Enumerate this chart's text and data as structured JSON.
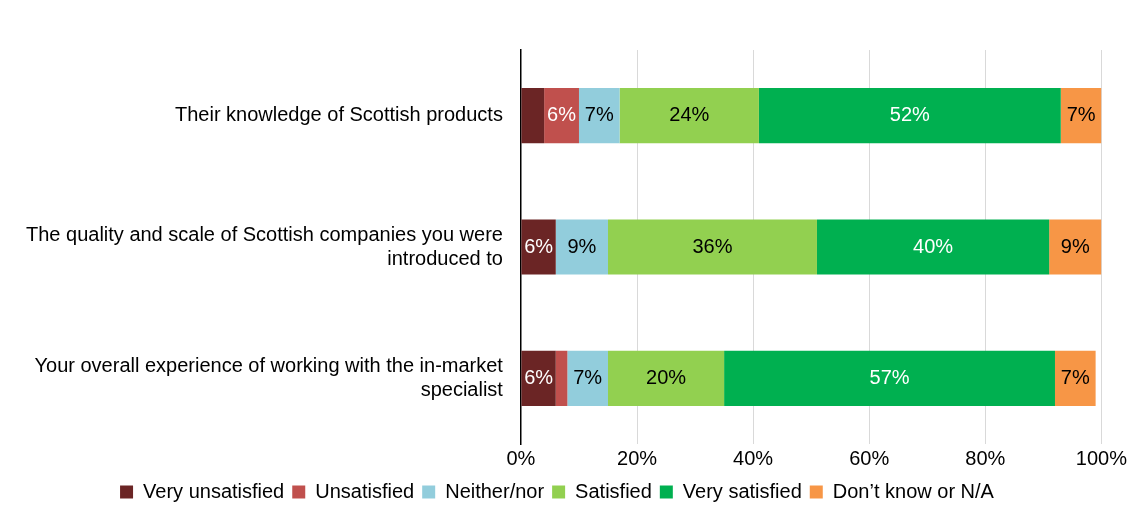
{
  "chart_data": {
    "type": "bar",
    "orientation": "horizontal",
    "stacked": true,
    "categories": [
      "Their knowledge of Scottish products",
      "The quality and scale of Scottish companies you were introduced to",
      "Your overall experience of working with the in-market specialist"
    ],
    "series": [
      {
        "name": "Very unsatisfied",
        "color": "#6b2525",
        "values": [
          4,
          6,
          6
        ],
        "value_labels": [
          null,
          "6%",
          "6%"
        ]
      },
      {
        "name": "Unsatisfied",
        "color": "#c0504d",
        "values": [
          6,
          0,
          2
        ],
        "value_labels": [
          "6%",
          null,
          null
        ]
      },
      {
        "name": "Neither/nor",
        "color": "#92cddc",
        "values": [
          7,
          9,
          7
        ],
        "value_labels": [
          "7%",
          "9%",
          "7%"
        ]
      },
      {
        "name": "Satisfied",
        "color": "#92d050",
        "values": [
          24,
          36,
          20
        ],
        "value_labels": [
          "24%",
          "36%",
          "20%"
        ]
      },
      {
        "name": "Very satisfied",
        "color": "#00b050",
        "values": [
          52,
          40,
          57
        ],
        "value_labels": [
          "52%",
          "40%",
          "57%"
        ]
      },
      {
        "name": "Don’t know or N/A",
        "color": "#f79646",
        "values": [
          7,
          9,
          7
        ],
        "value_labels": [
          "7%",
          "9%",
          "7%"
        ]
      }
    ],
    "xlim": [
      0,
      100
    ],
    "xticks": [
      {
        "value": 0,
        "label": "0%"
      },
      {
        "value": 20,
        "label": "20%"
      },
      {
        "value": 40,
        "label": "40%"
      },
      {
        "value": 60,
        "label": "60%"
      },
      {
        "value": 80,
        "label": "80%"
      },
      {
        "value": 100,
        "label": "100%"
      }
    ],
    "grid": "x",
    "legend": "bottom"
  }
}
